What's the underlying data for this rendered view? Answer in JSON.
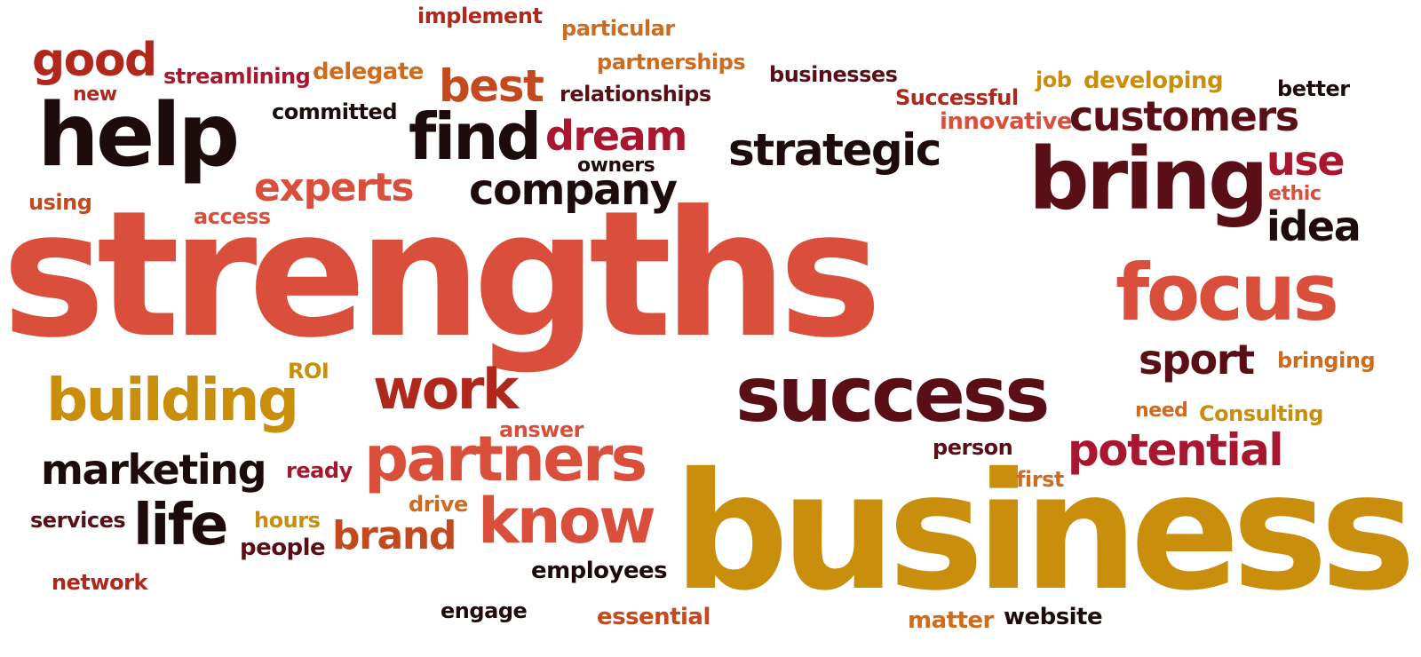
{
  "words": {
    "strengths": "strengths",
    "business": "business",
    "success": "success",
    "bring": "bring",
    "help": "help",
    "focus": "focus",
    "partners": "partners",
    "building": "building",
    "know": "know",
    "work": "work",
    "find": "find",
    "company": "company",
    "strategic": "strategic",
    "customers": "customers",
    "potential": "potential",
    "marketing": "marketing",
    "life": "life",
    "good": "good",
    "best": "best",
    "experts": "experts",
    "dream": "dream",
    "sport": "sport",
    "idea": "idea",
    "use": "use",
    "brand": "brand",
    "implement": "implement",
    "particular": "particular",
    "partnerships": "partnerships",
    "businesses": "businesses",
    "job": "job",
    "developing": "developing",
    "better": "better",
    "new": "new",
    "streamlining": "streamlining",
    "delegate": "delegate",
    "relationships": "relationships",
    "successful": "Successful",
    "innovative": "innovative",
    "committed": "committed",
    "owners": "owners",
    "ethic": "ethic",
    "using": "using",
    "access": "access",
    "roi": "ROI",
    "bringing": "bringing",
    "need": "need",
    "consulting": "Consulting",
    "answer": "answer",
    "person": "person",
    "ready": "ready",
    "first": "first",
    "services": "services",
    "hours": "hours",
    "drive": "drive",
    "people": "people",
    "employees": "employees",
    "network": "network",
    "engage": "engage",
    "essential": "essential",
    "matter": "matter",
    "website": "website"
  }
}
